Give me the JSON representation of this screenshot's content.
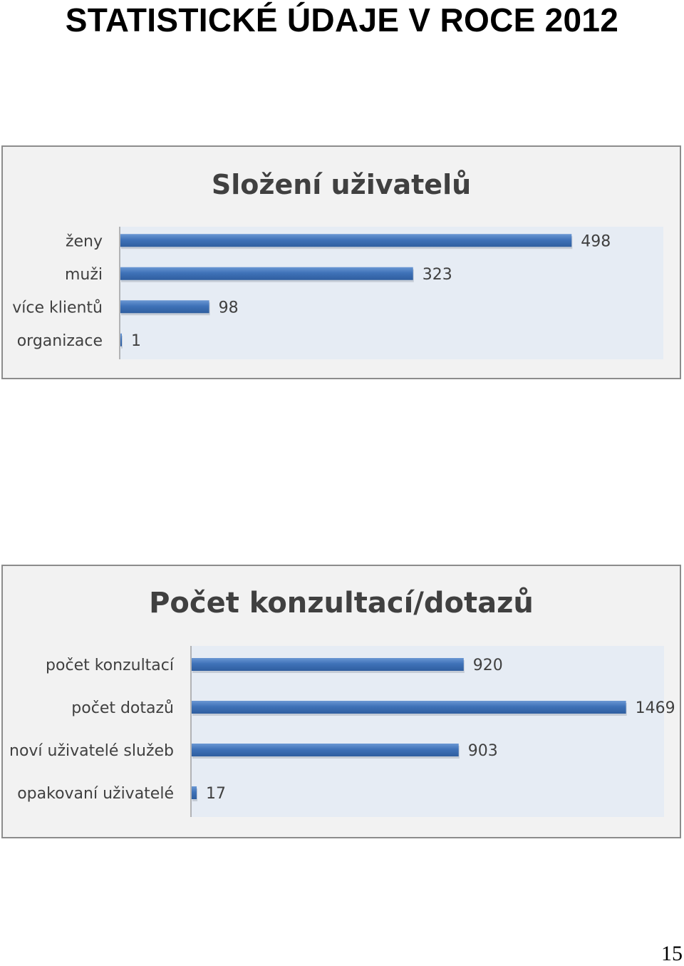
{
  "page": {
    "title": "STATISTICKÉ ÚDAJE V ROCE 2012",
    "page_number": "15"
  },
  "colors": {
    "bar": "#3f72b8",
    "bar_highlight": "#6a97d3",
    "plot_area": "#e6ecf4",
    "frame_bg": "#f2f2f2",
    "text": "#404040"
  },
  "chart_data": [
    {
      "type": "bar",
      "orientation": "horizontal",
      "title": "Složení uživatelů",
      "categories": [
        "ženy",
        "muži",
        "více klientů",
        "organizace"
      ],
      "values": [
        498,
        323,
        98,
        1
      ],
      "xlim": [
        0,
        600
      ],
      "grid": false,
      "data_labels": true
    },
    {
      "type": "bar",
      "orientation": "horizontal",
      "title": "Počet konzultací/dotazů",
      "categories": [
        "počet konzultací",
        "počet dotazů",
        "noví uživatelé služeb",
        "opakovaní uživatelé"
      ],
      "values": [
        920,
        1469,
        903,
        17
      ],
      "xlim": [
        0,
        1600
      ],
      "grid": false,
      "data_labels": true
    }
  ]
}
